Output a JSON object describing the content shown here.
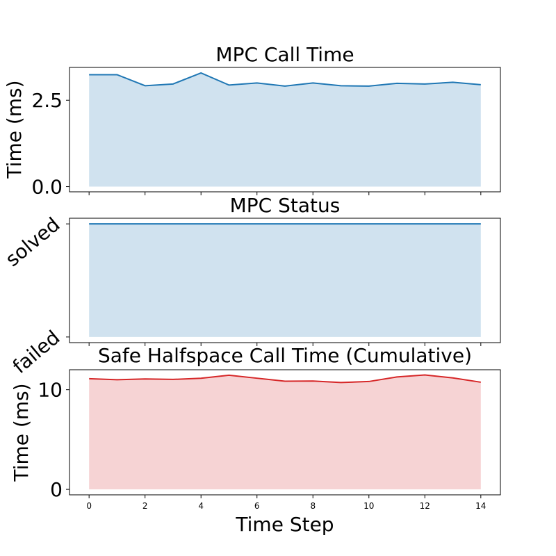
{
  "chart_data": [
    {
      "type": "area",
      "title": "MPC Call Time",
      "xlabel": "",
      "ylabel": "Time (ms)",
      "color": "#1f77b4",
      "fill_color": "#d0e2ef",
      "xlim": [
        -0.7,
        14.7
      ],
      "ylim": [
        -0.15,
        3.45
      ],
      "yticks": [
        0.0,
        2.5
      ],
      "ytick_labels": [
        "0.0",
        "2.5"
      ],
      "x": [
        0,
        1,
        2,
        3,
        4,
        5,
        6,
        7,
        8,
        9,
        10,
        11,
        12,
        13,
        14
      ],
      "series": [
        {
          "values": [
            3.24,
            3.24,
            2.92,
            2.97,
            3.29,
            2.94,
            3.0,
            2.91,
            3.0,
            2.92,
            2.91,
            2.99,
            2.97,
            3.02,
            2.95
          ]
        }
      ]
    },
    {
      "type": "area",
      "title": "MPC Status",
      "xlabel": "",
      "ylabel": "",
      "color": "#1f77b4",
      "fill_color": "#d0e2ef",
      "xlim": [
        -0.7,
        14.7
      ],
      "ylim": [
        -0.05,
        1.05
      ],
      "yticks": [
        0,
        1
      ],
      "ytick_labels": [
        "failed",
        "solved"
      ],
      "x": [
        0,
        1,
        2,
        3,
        4,
        5,
        6,
        7,
        8,
        9,
        10,
        11,
        12,
        13,
        14
      ],
      "series": [
        {
          "values": [
            1,
            1,
            1,
            1,
            1,
            1,
            1,
            1,
            1,
            1,
            1,
            1,
            1,
            1,
            1
          ]
        }
      ]
    },
    {
      "type": "area",
      "title": "Safe Halfspace Call Time (Cumulative)",
      "xlabel": "Time Step",
      "ylabel": "Time (ms)",
      "color": "#d62728",
      "fill_color": "#f6d3d4",
      "xlim": [
        -0.7,
        14.7
      ],
      "ylim": [
        -0.55,
        12.0
      ],
      "yticks": [
        0,
        10
      ],
      "ytick_labels": [
        "0",
        "10"
      ],
      "xticks": [
        0,
        2,
        4,
        6,
        8,
        10,
        12,
        14
      ],
      "xtick_labels": [
        "0",
        "2",
        "4",
        "6",
        "8",
        "10",
        "12",
        "14"
      ],
      "x": [
        0,
        1,
        2,
        3,
        4,
        5,
        6,
        7,
        8,
        9,
        10,
        11,
        12,
        13,
        14
      ],
      "series": [
        {
          "values": [
            11.1,
            11.0,
            11.08,
            11.03,
            11.15,
            11.45,
            11.15,
            10.85,
            10.87,
            10.72,
            10.82,
            11.28,
            11.48,
            11.18,
            10.75
          ]
        }
      ]
    }
  ]
}
